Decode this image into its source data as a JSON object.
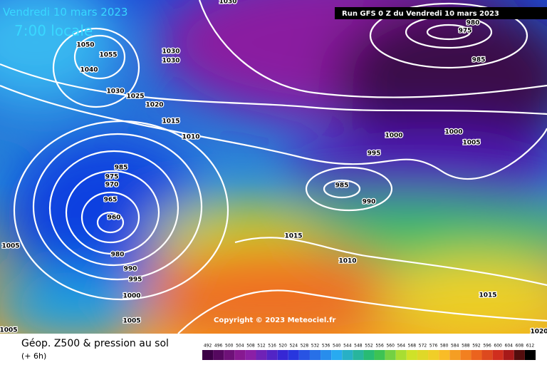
{
  "header": {
    "date": "Vendredi 10 mars 2023",
    "time": "7:00 locale",
    "run": "Run GFS 0 Z du Vendredi 10 mars 2023",
    "copyright": "Copyright © 2023 Meteociel.fr"
  },
  "footer": {
    "title": "Géop. Z500 & pression au sol",
    "lead": "(+ 6h)"
  },
  "isobar_labels": [
    "1050",
    "1055",
    "1040",
    "1030",
    "1030",
    "1030",
    "1025",
    "1020",
    "1015",
    "1010",
    "985",
    "975",
    "970",
    "965",
    "960",
    "980",
    "990",
    "995",
    "1000",
    "1005",
    "1005",
    "1005",
    "985",
    "990",
    "995",
    "1000",
    "1000",
    "1005",
    "1015",
    "1010",
    "1015",
    "1020",
    "985",
    "975",
    "980",
    "1030"
  ],
  "legend": {
    "labels": [
      "492",
      "496",
      "500",
      "504",
      "508",
      "512",
      "516",
      "520",
      "524",
      "528",
      "532",
      "536",
      "540",
      "544",
      "548",
      "552",
      "556",
      "560",
      "564",
      "568",
      "572",
      "576",
      "580",
      "584",
      "588",
      "592",
      "596",
      "600",
      "604",
      "608",
      "612"
    ]
  }
}
